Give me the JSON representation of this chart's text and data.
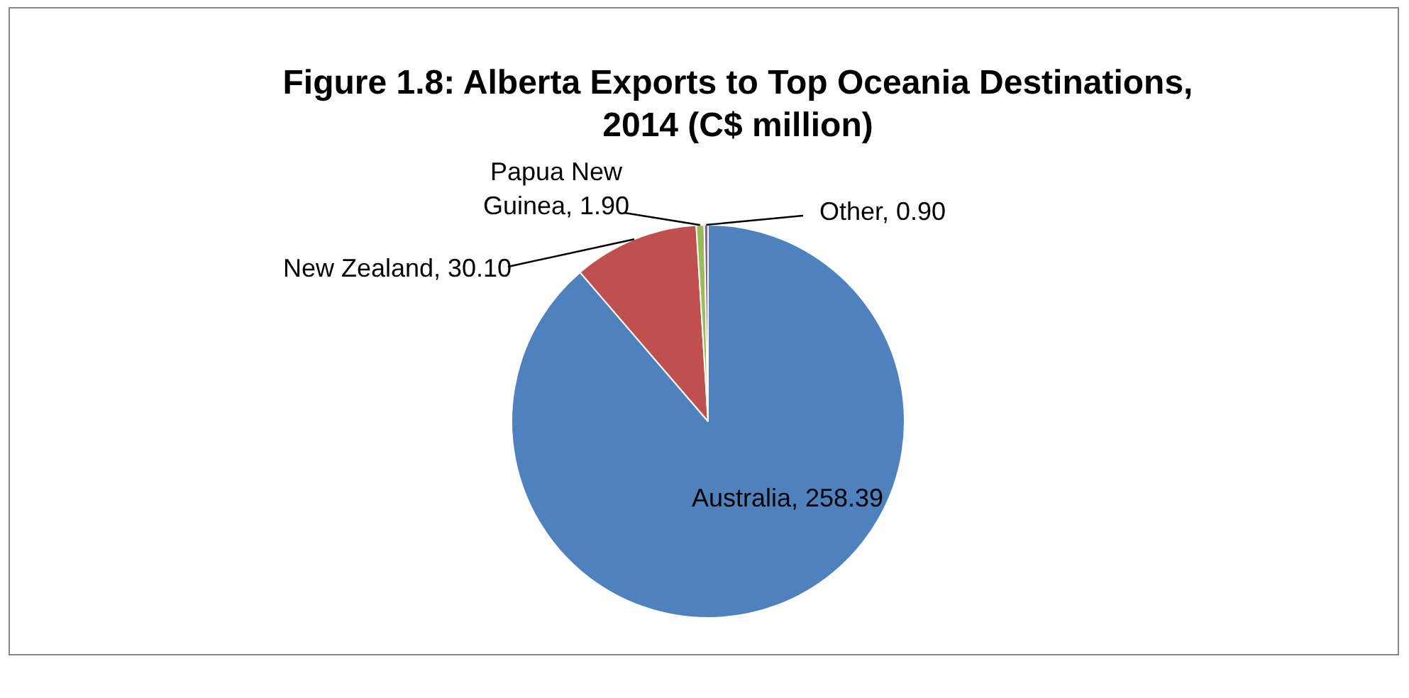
{
  "chart_data": {
    "type": "pie",
    "title": "Figure 1.8: Alberta Exports to Top Oceania Destinations, 2014 (C$ million)",
    "categories": [
      "Australia",
      "New Zealand",
      "Papua New Guinea",
      "Other"
    ],
    "values": [
      258.39,
      30.1,
      1.9,
      0.9
    ],
    "colors": [
      "#4f81bd",
      "#c0504d",
      "#9bbb59",
      "#8064a2"
    ],
    "value_labels": [
      "258.39",
      "30.10",
      "1.90",
      "0.90"
    ],
    "legend": false
  }
}
